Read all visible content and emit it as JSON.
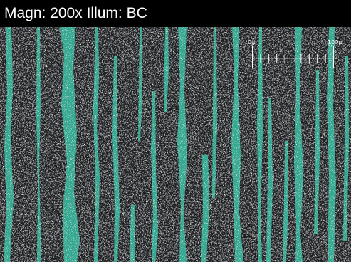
{
  "header": {
    "caption": "Magn: 200x Illum: BC"
  },
  "scale_bar": {
    "start_label": "0µ",
    "end_label": "100µ",
    "divisions": 10
  },
  "colors": {
    "background": "#000000",
    "matrix": "#1e2022",
    "phase": "#36a891",
    "speckle": "#e6e6e6",
    "text": "#ffffff"
  }
}
